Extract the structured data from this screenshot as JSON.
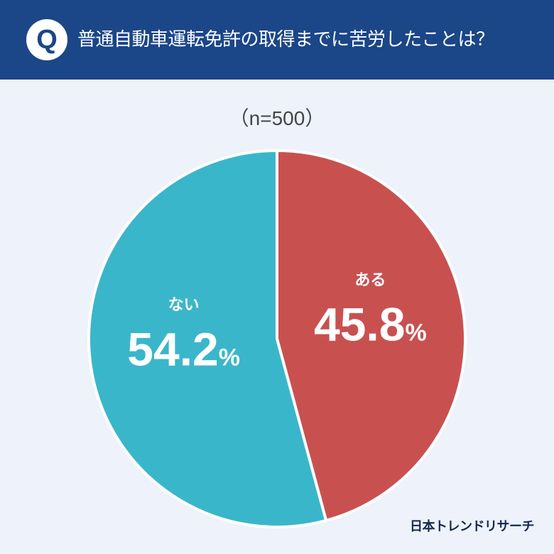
{
  "header": {
    "q_label": "Q",
    "title": "普通自動車運転免許の取得までに苦労したことは？"
  },
  "chart_data": {
    "type": "pie",
    "title": "普通自動車運転免許の取得までに苦労したことは？",
    "subtitle": "（n=500）",
    "slices": [
      {
        "label": "ある",
        "value": 45.8,
        "display": "45.8",
        "unit": "%",
        "color": "#c85150"
      },
      {
        "label": "ない",
        "value": 54.2,
        "display": "54.2",
        "unit": "%",
        "color": "#3ab6ca"
      }
    ],
    "start": "12 o'clock, clockwise"
  },
  "logo": "日本トレンドリサーチ"
}
